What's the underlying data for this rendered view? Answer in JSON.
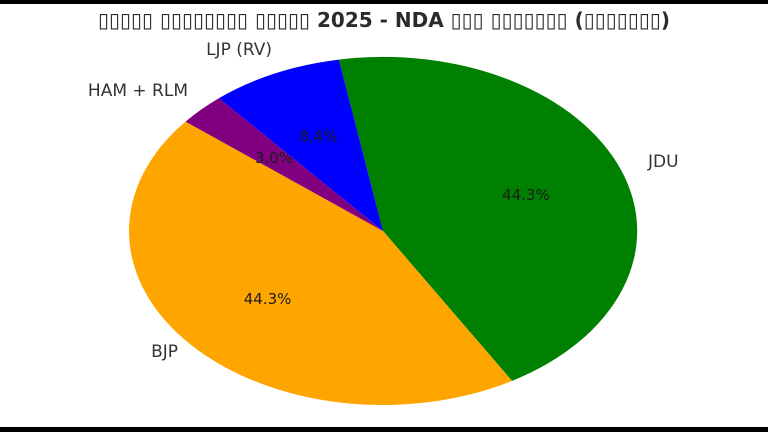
{
  "title": "▯▯▯▯▯ ▯▯▯▯▯▯▯▯ ▯▯▯▯▯ 2025 - NDA ▯▯▯ ▯▯▯▯▯▯▯ (▯▯▯▯▯▯▯)",
  "chart_data": {
    "type": "pie",
    "title": "▯▯▯▯▯ ▯▯▯▯▯▯▯▯ ▯▯▯▯▯ 2025 - NDA ▯▯▯ ▯▯▯▯▯▯▯ (▯▯▯▯▯▯▯)",
    "title_note": "Title contains missing-glyph tofu boxes around '2025 - NDA' as rendered",
    "legend_position": "none",
    "direction": "clockwise",
    "start_angle_deg": 100,
    "slices": [
      {
        "id": "jdu",
        "label": "JDU",
        "value": 44.3,
        "percent_label": "44.3%",
        "color": "#008000"
      },
      {
        "id": "bjp",
        "label": "BJP",
        "value": 44.3,
        "percent_label": "44.3%",
        "color": "#ffa500"
      },
      {
        "id": "ham-rlm",
        "label": "HAM + RLM",
        "value": 3.0,
        "percent_label": "3.0%",
        "color": "#800080"
      },
      {
        "id": "ljp-rv",
        "label": "LJP (RV)",
        "value": 8.4,
        "percent_label": "8.4%",
        "color": "#0000ff"
      }
    ]
  },
  "colors": {
    "background": "#ffffff",
    "letterbox": "#000000",
    "title_text": "#2b2b2b",
    "label_text": "#333333",
    "percent_text": "#1c1c1c"
  }
}
